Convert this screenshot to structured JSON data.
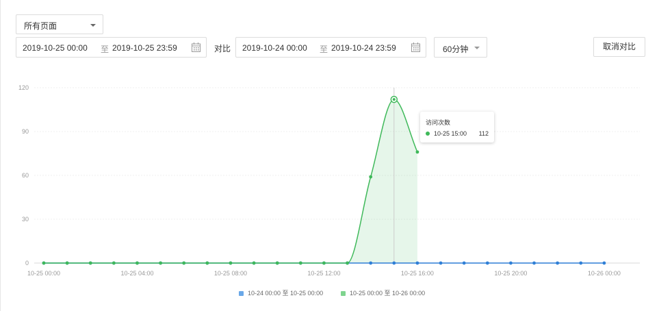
{
  "filters": {
    "page_select": "所有页面",
    "range_current": {
      "start": "2019-10-25 00:00",
      "sep": "至",
      "end": "2019-10-25 23:59"
    },
    "compare_label": "对比",
    "range_compare": {
      "start": "2019-10-24 00:00",
      "sep": "至",
      "end": "2019-10-24 23:59"
    },
    "interval": "60分钟",
    "cancel_compare": "取消对比"
  },
  "tooltip": {
    "title": "访问次数",
    "label": "10-25 15:00",
    "value": "112",
    "color": "#3fb95a"
  },
  "legend": {
    "items": [
      {
        "label": "10-24 00:00 至 10-25 00:00",
        "color": "#6aa8e8"
      },
      {
        "label": "10-25 00:00 至 10-26 00:00",
        "color": "#7fd48f"
      }
    ]
  },
  "chart_data": {
    "type": "area",
    "yticks": [
      0,
      30,
      60,
      90,
      120
    ],
    "ylim": [
      0,
      120
    ],
    "xlim": [
      0,
      25
    ],
    "xticks": [
      {
        "x": 0,
        "label": "10-25 00:00"
      },
      {
        "x": 4,
        "label": "10-25 04:00"
      },
      {
        "x": 8,
        "label": "10-25 08:00"
      },
      {
        "x": 12,
        "label": "10-25 12:00"
      },
      {
        "x": 16,
        "label": "10-25 16:00"
      },
      {
        "x": 20,
        "label": "10-25 20:00"
      },
      {
        "x": 24,
        "label": "10-26 00:00"
      }
    ],
    "series": [
      {
        "name": "10-24 00:00 至 10-25 00:00",
        "color": "#2f7fd6",
        "x": [
          0,
          1,
          2,
          3,
          4,
          5,
          6,
          7,
          8,
          9,
          10,
          11,
          12,
          13,
          14,
          15,
          16,
          17,
          18,
          19,
          20,
          21,
          22,
          23,
          24
        ],
        "values": [
          0,
          0,
          0,
          0,
          0,
          0,
          0,
          0,
          0,
          0,
          0,
          0,
          0,
          0,
          0,
          0,
          0,
          0,
          0,
          0,
          0,
          0,
          0,
          0,
          0
        ]
      },
      {
        "name": "10-25 00:00 至 10-26 00:00",
        "color": "#3fb95a",
        "x": [
          0,
          1,
          2,
          3,
          4,
          5,
          6,
          7,
          8,
          9,
          10,
          11,
          12,
          13,
          14,
          15,
          16
        ],
        "values": [
          0,
          0,
          0,
          0,
          0,
          0,
          0,
          0,
          0,
          0,
          0,
          0,
          0,
          0,
          59,
          112,
          76
        ]
      }
    ],
    "highlight_x": 15,
    "grid": true
  }
}
